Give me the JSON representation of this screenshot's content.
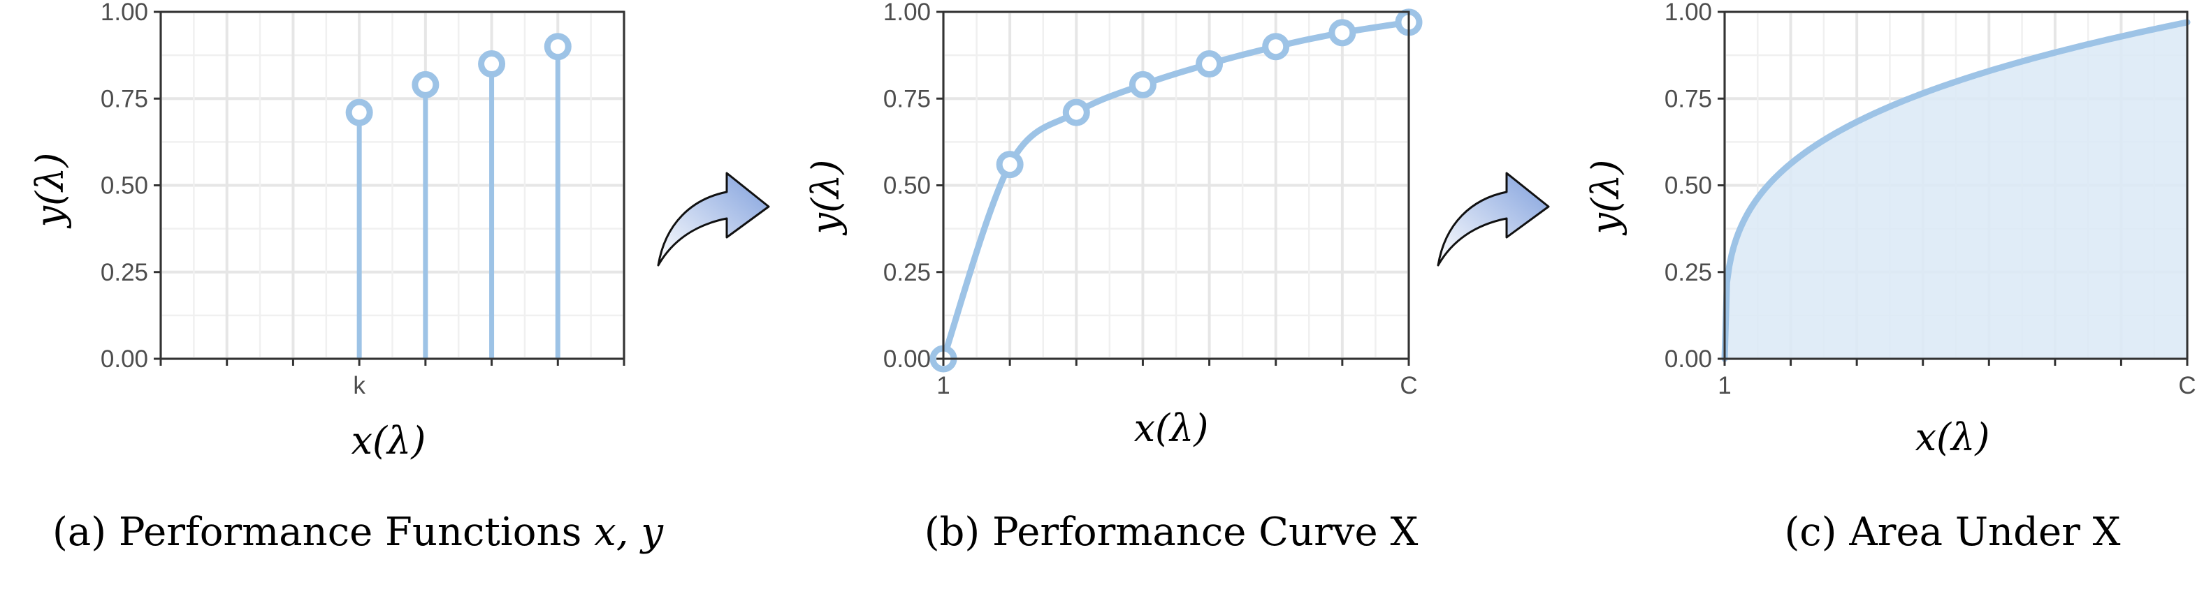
{
  "chart_data": [
    {
      "type": "scatter",
      "style": "lollipop",
      "caption_prefix": "(a) Performance Functions ",
      "caption_math": "x, y",
      "xlabel": "x(λ)",
      "ylabel": "y(λ)",
      "x_tick_labels": [
        "",
        "",
        "",
        "k",
        "",
        "",
        "",
        ""
      ],
      "ylim": [
        0,
        1
      ],
      "y_ticks": [
        "0.00",
        "0.25",
        "0.50",
        "0.75",
        "1.00"
      ],
      "x": [
        3,
        4,
        5,
        6
      ],
      "values": [
        0.71,
        0.79,
        0.85,
        0.9
      ],
      "color": "#9dc3e6"
    },
    {
      "type": "line",
      "caption": "(b) Performance Curve X",
      "xlabel": "x(λ)",
      "ylabel": "y(λ)",
      "x_tick_labels": [
        "1",
        "",
        "",
        "",
        "",
        "",
        "",
        "C"
      ],
      "ylim": [
        0,
        1
      ],
      "y_ticks": [
        "0.00",
        "0.25",
        "0.50",
        "0.75",
        "1.00"
      ],
      "x": [
        1,
        2,
        3,
        4,
        5,
        6,
        7,
        8
      ],
      "values": [
        0.0,
        0.56,
        0.71,
        0.79,
        0.85,
        0.9,
        0.94,
        0.97
      ],
      "color": "#9dc3e6"
    },
    {
      "type": "area",
      "caption": "(c) Area Under X",
      "xlabel": "x(λ)",
      "ylabel": "y(λ)",
      "x_tick_labels": [
        "1",
        "",
        "",
        "",
        "",
        "",
        "",
        "C"
      ],
      "ylim": [
        0,
        1
      ],
      "y_ticks": [
        "0.00",
        "0.25",
        "0.50",
        "0.75",
        "1.00"
      ],
      "x": [
        1,
        8
      ],
      "values": [
        0.0,
        0.97
      ],
      "color": "#9dc3e6",
      "fill": "#dbe9f6"
    }
  ],
  "arrow_color": "#8fa8d8"
}
